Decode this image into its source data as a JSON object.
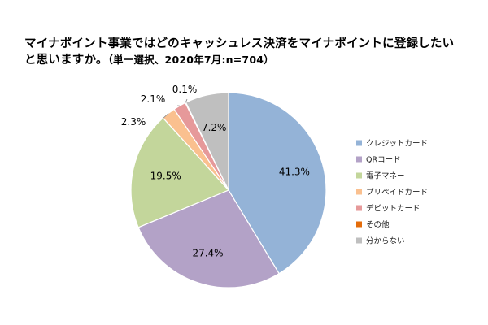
{
  "title": {
    "line1": "マイナポイント事業ではどのキャッシュレス決済をマイナポイントに登録したい",
    "line2": "と思いますか。",
    "subtitle": "（単一選択、2020年7月:n=704）"
  },
  "chart_data": {
    "type": "pie",
    "title": "マイナポイント事業ではどのキャッシュレス決済をマイナポイントに登録したいと思いますか。",
    "subtitle": "（単一選択、2020年7月:n=704）",
    "categories": [
      "クレジットカード",
      "QRコード",
      "電子マネー",
      "プリペイドカード",
      "デビットカード",
      "その他",
      "分からない"
    ],
    "values": [
      41.3,
      27.4,
      19.5,
      2.3,
      2.1,
      0.1,
      7.2
    ],
    "labels": [
      "41.3%",
      "27.4%",
      "19.5%",
      "2.3%",
      "2.1%",
      "0.1%",
      "7.2%"
    ],
    "colors": [
      "#94B3D7",
      "#B3A2C7",
      "#C3D69B",
      "#FAC08F",
      "#E6999A",
      "#E46C0A",
      "#BFBFBF"
    ],
    "unit": "%",
    "legend_position": "right"
  }
}
